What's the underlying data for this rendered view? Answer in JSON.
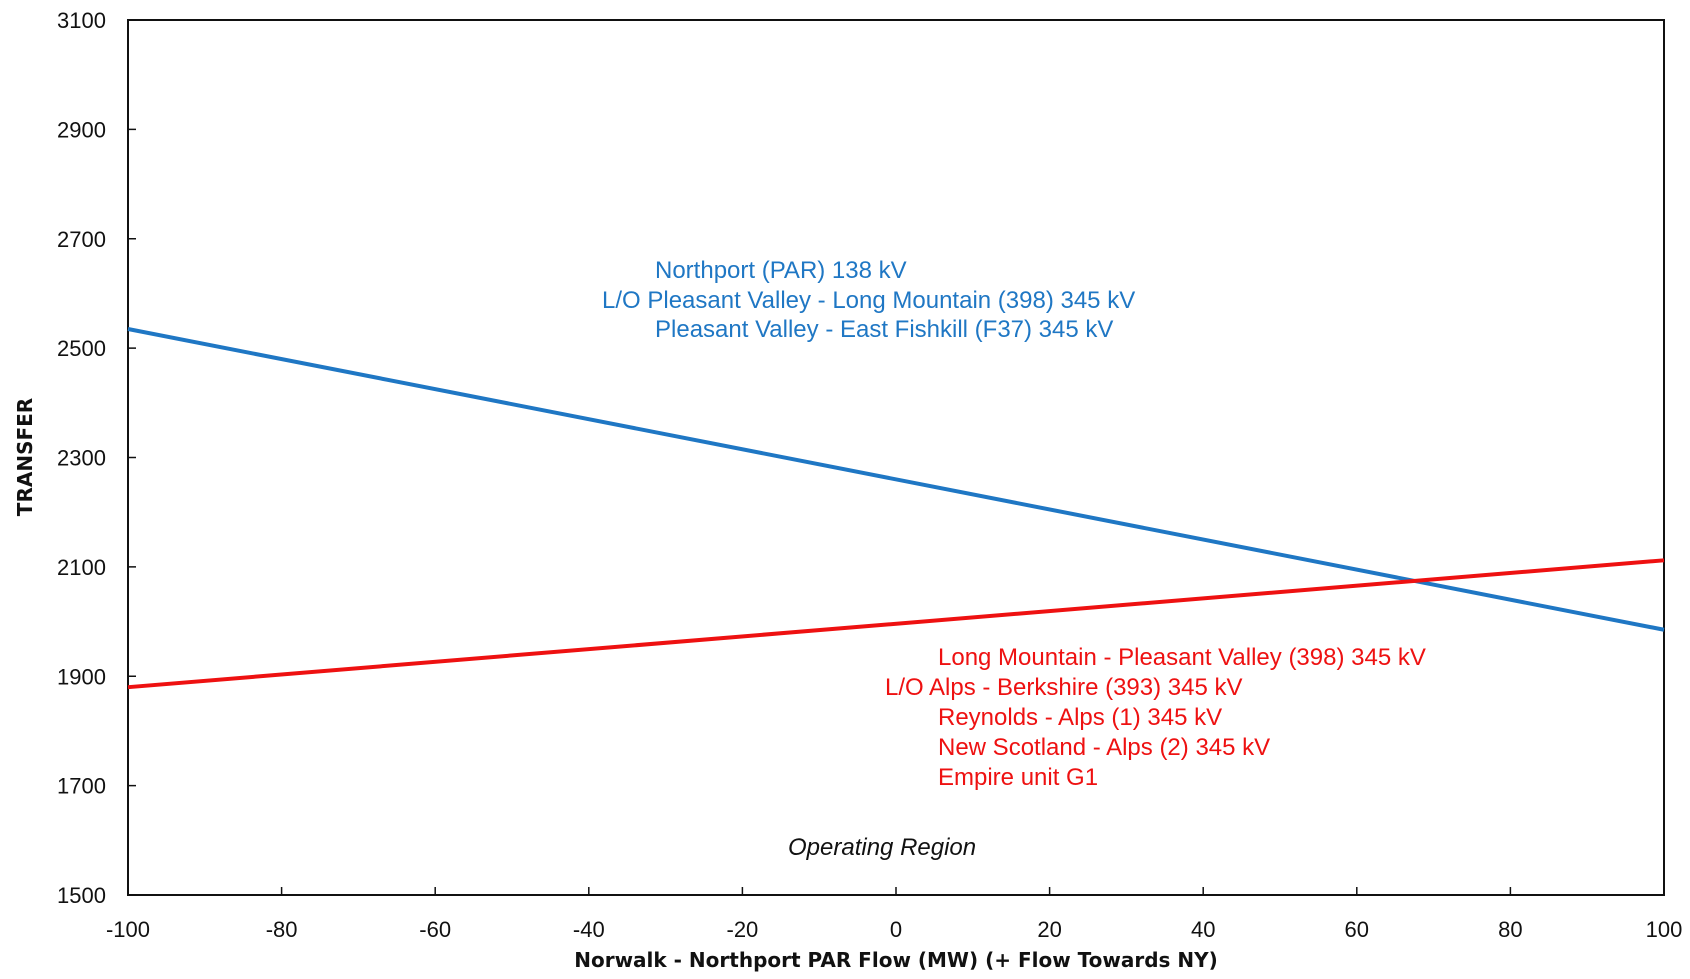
{
  "chart_data": {
    "type": "line",
    "xlabel": "Norwalk - Northport PAR Flow (MW) (+ Flow Towards NY)",
    "ylabel": "TRANSFER",
    "xlim": [
      -100,
      100
    ],
    "ylim": [
      1500,
      3100
    ],
    "x_ticks": [
      "-100",
      "-80",
      "-60",
      "-40",
      "-20",
      "0",
      "20",
      "40",
      "60",
      "80",
      "100"
    ],
    "y_ticks": [
      "1500",
      "1700",
      "1900",
      "2100",
      "2300",
      "2500",
      "2700",
      "2900",
      "3100"
    ],
    "grid": false,
    "series": [
      {
        "color": "#1f77c4",
        "x": [
          -100,
          100
        ],
        "y": [
          2535,
          1985
        ]
      },
      {
        "color": "#ee1111",
        "x": [
          -100,
          100
        ],
        "y": [
          1880,
          2112
        ]
      }
    ],
    "annotations": {
      "blue_lines": [
        "Northport (PAR) 138 kV",
        "L/O Pleasant Valley - Long Mountain (398) 345 kV",
        "Pleasant Valley - East Fishkill (F37) 345 kV"
      ],
      "red_lines": [
        "Long Mountain - Pleasant Valley (398) 345 kV",
        "L/O Alps - Berkshire (393) 345 kV",
        "Reynolds - Alps (1) 345 kV",
        "New Scotland - Alps (2) 345 kV",
        "Empire unit G1"
      ],
      "region_label": "Operating Region"
    }
  }
}
